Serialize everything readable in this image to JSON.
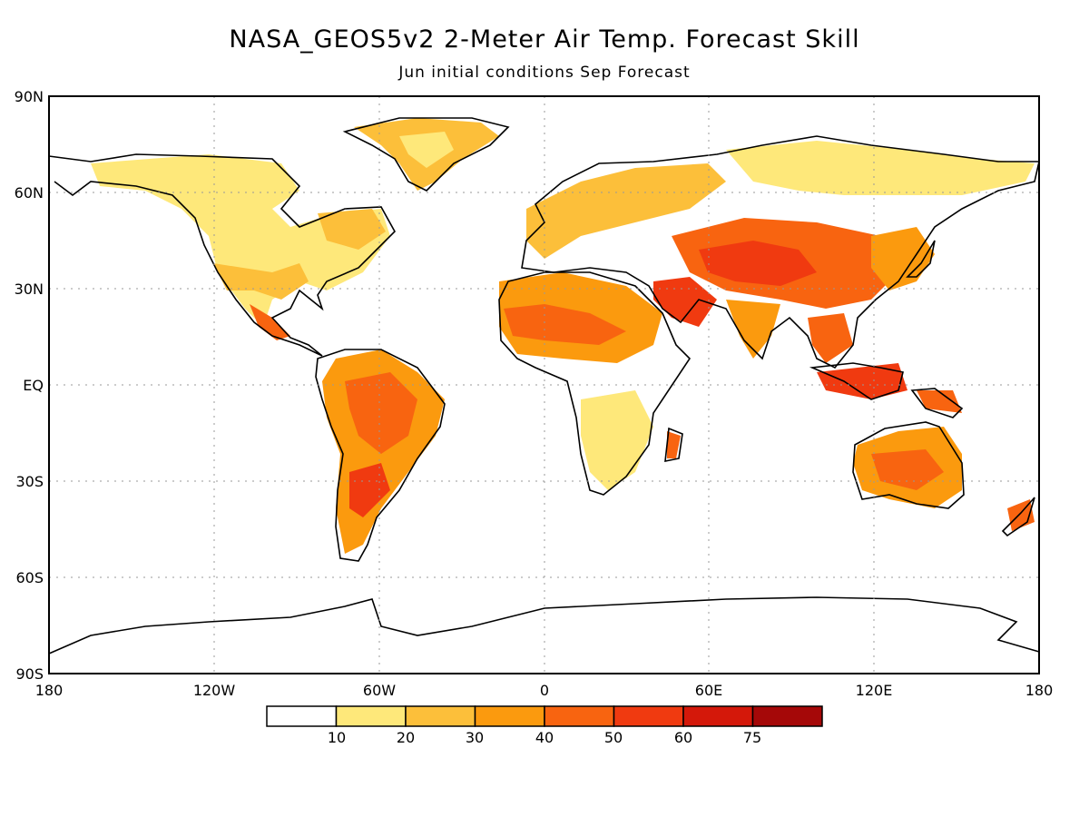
{
  "title": "NASA_GEOS5v2 2-Meter Air Temp. Forecast Skill",
  "subtitle": "Jun initial conditions  Sep Forecast",
  "lat_ticks": [
    "90N",
    "60N",
    "30N",
    "EQ",
    "30S",
    "60S",
    "90S"
  ],
  "lon_ticks": [
    "180",
    "120W",
    "60W",
    "0",
    "60E",
    "120E",
    "180"
  ],
  "colorbar": {
    "labels": [
      "10",
      "20",
      "30",
      "40",
      "50",
      "60",
      "75"
    ],
    "colors": [
      "#ffffff",
      "#fee87a",
      "#fcbf3a",
      "#fb9a0e",
      "#f86410",
      "#f03a10",
      "#d4180a",
      "#a50808"
    ]
  }
}
